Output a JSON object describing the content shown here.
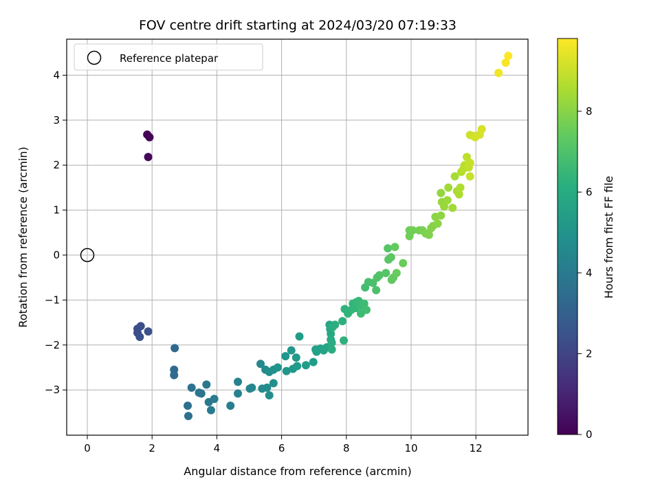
{
  "chart_data": {
    "type": "scatter",
    "title": "FOV centre drift starting at 2024/03/20 07:19:33",
    "xlabel": "Angular distance from reference (arcmin)",
    "ylabel": "Rotation from reference (arcmin)",
    "xlim": [
      -0.6,
      13.6
    ],
    "ylim": [
      -4.0,
      4.8
    ],
    "x_ticks": [
      0,
      2,
      4,
      6,
      8,
      10,
      12
    ],
    "y_ticks": [
      -3,
      -2,
      -1,
      0,
      1,
      2,
      3,
      4
    ],
    "grid": true,
    "legend": {
      "placement": "top-left",
      "entries": [
        {
          "label": "Reference platepar",
          "marker": "open-circle"
        }
      ]
    },
    "reference_point": {
      "x": 0,
      "y": 0
    },
    "colorbar": {
      "label": "Hours from first FF file",
      "range": [
        0,
        9.8
      ],
      "ticks": [
        0,
        2,
        4,
        6,
        8
      ],
      "colormap": "viridis"
    },
    "points": [
      {
        "x": 1.85,
        "y": 2.68,
        "c": 0.05
      },
      {
        "x": 1.92,
        "y": 2.62,
        "c": 0.1
      },
      {
        "x": 1.88,
        "y": 2.18,
        "c": 0.2
      },
      {
        "x": 1.55,
        "y": -1.64,
        "c": 2.3
      },
      {
        "x": 1.55,
        "y": -1.73,
        "c": 2.3
      },
      {
        "x": 1.65,
        "y": -1.58,
        "c": 2.35
      },
      {
        "x": 1.62,
        "y": -1.82,
        "c": 2.4
      },
      {
        "x": 1.88,
        "y": -1.7,
        "c": 2.45
      },
      {
        "x": 2.7,
        "y": -2.07,
        "c": 3.3
      },
      {
        "x": 2.68,
        "y": -2.55,
        "c": 3.4
      },
      {
        "x": 2.68,
        "y": -2.67,
        "c": 3.45
      },
      {
        "x": 3.1,
        "y": -3.35,
        "c": 3.55
      },
      {
        "x": 3.12,
        "y": -3.58,
        "c": 3.6
      },
      {
        "x": 3.22,
        "y": -2.95,
        "c": 3.7
      },
      {
        "x": 3.45,
        "y": -3.06,
        "c": 3.8
      },
      {
        "x": 3.52,
        "y": -3.08,
        "c": 3.85
      },
      {
        "x": 3.68,
        "y": -2.88,
        "c": 3.9
      },
      {
        "x": 3.75,
        "y": -3.27,
        "c": 3.95
      },
      {
        "x": 3.82,
        "y": -3.45,
        "c": 4.0
      },
      {
        "x": 3.92,
        "y": -3.2,
        "c": 4.05
      },
      {
        "x": 4.42,
        "y": -3.35,
        "c": 4.2
      },
      {
        "x": 4.65,
        "y": -2.82,
        "c": 4.3
      },
      {
        "x": 4.65,
        "y": -3.08,
        "c": 4.35
      },
      {
        "x": 5.02,
        "y": -2.97,
        "c": 4.5
      },
      {
        "x": 5.08,
        "y": -2.95,
        "c": 4.55
      },
      {
        "x": 5.35,
        "y": -2.42,
        "c": 4.6
      },
      {
        "x": 5.4,
        "y": -2.97,
        "c": 4.65
      },
      {
        "x": 5.5,
        "y": -2.55,
        "c": 4.7
      },
      {
        "x": 5.55,
        "y": -2.95,
        "c": 4.75
      },
      {
        "x": 5.62,
        "y": -3.12,
        "c": 4.8
      },
      {
        "x": 5.62,
        "y": -2.6,
        "c": 4.85
      },
      {
        "x": 5.75,
        "y": -2.55,
        "c": 4.9
      },
      {
        "x": 5.75,
        "y": -2.85,
        "c": 4.95
      },
      {
        "x": 5.88,
        "y": -2.5,
        "c": 5.0
      },
      {
        "x": 6.12,
        "y": -2.25,
        "c": 5.1
      },
      {
        "x": 6.15,
        "y": -2.58,
        "c": 5.15
      },
      {
        "x": 6.3,
        "y": -2.12,
        "c": 5.2
      },
      {
        "x": 6.35,
        "y": -2.53,
        "c": 5.25
      },
      {
        "x": 6.45,
        "y": -2.28,
        "c": 5.3
      },
      {
        "x": 6.48,
        "y": -2.47,
        "c": 5.35
      },
      {
        "x": 6.55,
        "y": -1.81,
        "c": 5.4
      },
      {
        "x": 6.75,
        "y": -2.45,
        "c": 5.45
      },
      {
        "x": 6.98,
        "y": -2.38,
        "c": 5.5
      },
      {
        "x": 7.05,
        "y": -2.1,
        "c": 5.55
      },
      {
        "x": 7.08,
        "y": -2.15,
        "c": 5.6
      },
      {
        "x": 7.2,
        "y": -2.08,
        "c": 5.65
      },
      {
        "x": 7.3,
        "y": -2.12,
        "c": 5.7
      },
      {
        "x": 7.4,
        "y": -2.05,
        "c": 5.75
      },
      {
        "x": 7.48,
        "y": -1.55,
        "c": 5.8
      },
      {
        "x": 7.5,
        "y": -1.65,
        "c": 5.85
      },
      {
        "x": 7.52,
        "y": -1.75,
        "c": 5.9
      },
      {
        "x": 7.52,
        "y": -1.88,
        "c": 5.95
      },
      {
        "x": 7.55,
        "y": -1.95,
        "c": 6.0
      },
      {
        "x": 7.55,
        "y": -2.1,
        "c": 6.05
      },
      {
        "x": 7.58,
        "y": -1.6,
        "c": 6.1
      },
      {
        "x": 7.65,
        "y": -1.55,
        "c": 6.15
      },
      {
        "x": 7.88,
        "y": -1.47,
        "c": 6.2
      },
      {
        "x": 7.92,
        "y": -1.9,
        "c": 6.25
      },
      {
        "x": 7.95,
        "y": -1.2,
        "c": 6.3
      },
      {
        "x": 8.05,
        "y": -1.3,
        "c": 6.35
      },
      {
        "x": 8.15,
        "y": -1.22,
        "c": 6.4
      },
      {
        "x": 8.2,
        "y": -1.08,
        "c": 6.45
      },
      {
        "x": 8.28,
        "y": -1.18,
        "c": 6.5
      },
      {
        "x": 8.3,
        "y": -1.05,
        "c": 6.55
      },
      {
        "x": 8.38,
        "y": -1.02,
        "c": 6.6
      },
      {
        "x": 8.45,
        "y": -1.12,
        "c": 6.65
      },
      {
        "x": 8.45,
        "y": -1.3,
        "c": 6.7
      },
      {
        "x": 8.55,
        "y": -1.08,
        "c": 6.75
      },
      {
        "x": 8.62,
        "y": -1.22,
        "c": 6.8
      },
      {
        "x": 8.58,
        "y": -0.72,
        "c": 6.85
      },
      {
        "x": 8.68,
        "y": -0.6,
        "c": 6.9
      },
      {
        "x": 8.82,
        "y": -0.62,
        "c": 6.95
      },
      {
        "x": 8.92,
        "y": -0.78,
        "c": 7.0
      },
      {
        "x": 8.95,
        "y": -0.5,
        "c": 7.05
      },
      {
        "x": 9.02,
        "y": -0.45,
        "c": 7.1
      },
      {
        "x": 9.22,
        "y": -0.4,
        "c": 7.15
      },
      {
        "x": 9.28,
        "y": 0.15,
        "c": 7.2
      },
      {
        "x": 9.3,
        "y": -0.1,
        "c": 7.25
      },
      {
        "x": 9.38,
        "y": -0.05,
        "c": 7.3
      },
      {
        "x": 9.4,
        "y": -0.55,
        "c": 7.35
      },
      {
        "x": 9.45,
        "y": -0.5,
        "c": 7.4
      },
      {
        "x": 9.5,
        "y": 0.18,
        "c": 7.45
      },
      {
        "x": 9.55,
        "y": -0.4,
        "c": 7.5
      },
      {
        "x": 9.75,
        "y": -0.18,
        "c": 7.55
      },
      {
        "x": 9.95,
        "y": 0.55,
        "c": 7.6
      },
      {
        "x": 9.95,
        "y": 0.42,
        "c": 7.65
      },
      {
        "x": 10.05,
        "y": 0.55,
        "c": 7.7
      },
      {
        "x": 10.25,
        "y": 0.55,
        "c": 7.75
      },
      {
        "x": 10.35,
        "y": 0.55,
        "c": 7.8
      },
      {
        "x": 10.45,
        "y": 0.48,
        "c": 7.85
      },
      {
        "x": 10.55,
        "y": 0.45,
        "c": 7.9
      },
      {
        "x": 10.62,
        "y": 0.6,
        "c": 7.95
      },
      {
        "x": 10.68,
        "y": 0.65,
        "c": 8.0
      },
      {
        "x": 10.75,
        "y": 0.85,
        "c": 8.05
      },
      {
        "x": 10.82,
        "y": 0.7,
        "c": 8.1
      },
      {
        "x": 10.92,
        "y": 0.88,
        "c": 8.15
      },
      {
        "x": 10.92,
        "y": 1.38,
        "c": 8.2
      },
      {
        "x": 10.95,
        "y": 1.18,
        "c": 8.25
      },
      {
        "x": 11.02,
        "y": 1.08,
        "c": 8.3
      },
      {
        "x": 11.12,
        "y": 1.22,
        "c": 8.35
      },
      {
        "x": 11.15,
        "y": 1.5,
        "c": 8.4
      },
      {
        "x": 11.28,
        "y": 1.05,
        "c": 8.45
      },
      {
        "x": 11.35,
        "y": 1.75,
        "c": 8.5
      },
      {
        "x": 11.42,
        "y": 1.42,
        "c": 8.55
      },
      {
        "x": 11.48,
        "y": 1.35,
        "c": 8.6
      },
      {
        "x": 11.52,
        "y": 1.5,
        "c": 8.65
      },
      {
        "x": 11.55,
        "y": 1.85,
        "c": 8.7
      },
      {
        "x": 11.62,
        "y": 1.92,
        "c": 8.75
      },
      {
        "x": 11.65,
        "y": 2.0,
        "c": 8.8
      },
      {
        "x": 11.72,
        "y": 2.18,
        "c": 8.85
      },
      {
        "x": 11.78,
        "y": 1.95,
        "c": 8.9
      },
      {
        "x": 11.82,
        "y": 2.05,
        "c": 8.95
      },
      {
        "x": 11.82,
        "y": 1.75,
        "c": 9.0
      },
      {
        "x": 11.82,
        "y": 2.67,
        "c": 9.05
      },
      {
        "x": 11.92,
        "y": 2.65,
        "c": 9.1
      },
      {
        "x": 11.98,
        "y": 2.62,
        "c": 9.15
      },
      {
        "x": 12.12,
        "y": 2.68,
        "c": 9.2
      },
      {
        "x": 12.18,
        "y": 2.8,
        "c": 9.25
      },
      {
        "x": 12.7,
        "y": 4.05,
        "c": 9.6
      },
      {
        "x": 12.92,
        "y": 4.28,
        "c": 9.7
      },
      {
        "x": 13.0,
        "y": 4.43,
        "c": 9.8
      }
    ]
  }
}
